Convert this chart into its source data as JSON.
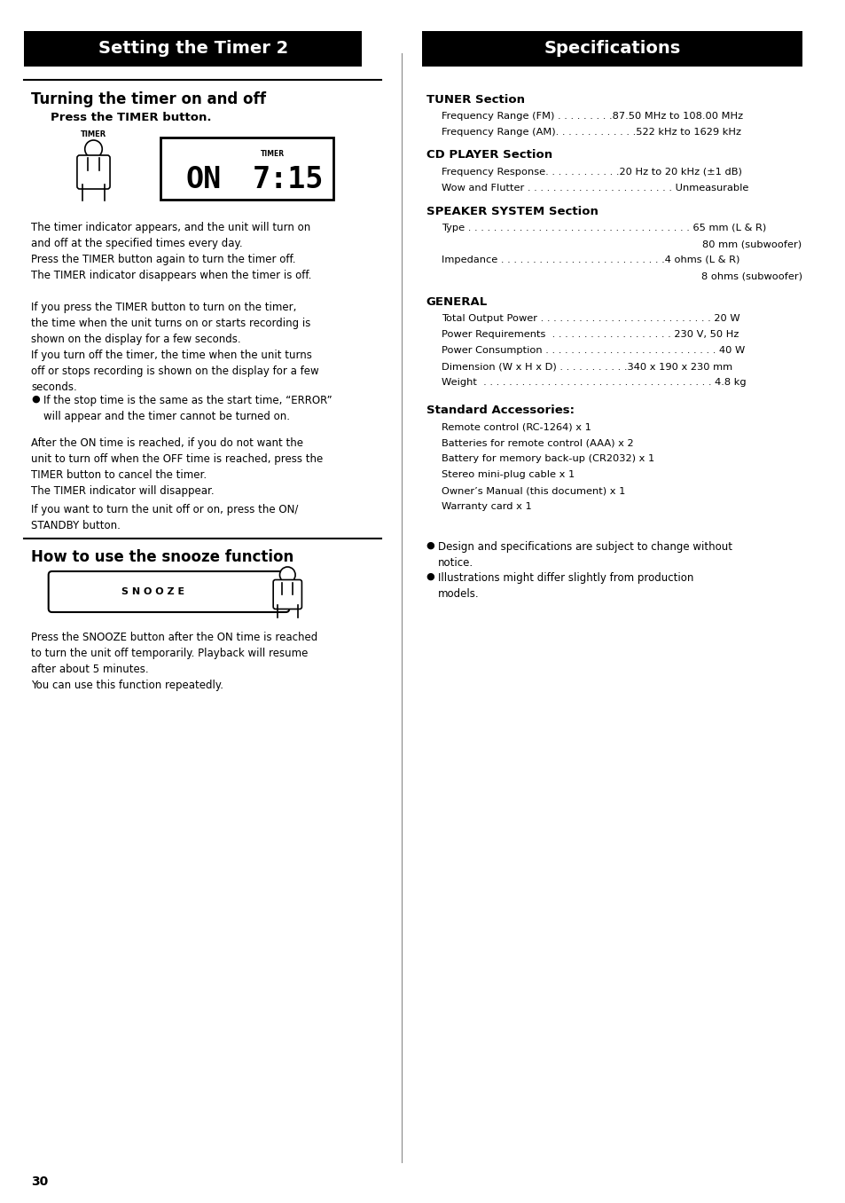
{
  "page_number": "30",
  "col1_header": "Setting the Timer 2",
  "col2_header": "Specifications",
  "col1_section1_title": "Turning the timer on and off",
  "col1_section1_subtitle": "Press the TIMER button.",
  "col1_section1_body1": "The timer indicator appears, and the unit will turn on\nand off at the specified times every day.\nPress the TIMER button again to turn the timer off.\nThe TIMER indicator disappears when the timer is off.",
  "col1_section1_body2": "If you press the TIMER button to turn on the timer,\nthe time when the unit turns on or starts recording is\nshown on the display for a few seconds.\nIf you turn off the timer, the time when the unit turns\noff or stops recording is shown on the display for a few\nseconds.",
  "col1_bullet1": "If the stop time is the same as the start time, “ERROR”\nwill appear and the timer cannot be turned on.",
  "col1_section1_body3": "After the ON time is reached, if you do not want the\nunit to turn off when the OFF time is reached, press the\nTIMER button to cancel the timer.\nThe TIMER indicator will disappear.",
  "col1_section1_body4": "If you want to turn the unit off or on, press the ON/\nSTANDBY button.",
  "col1_section2_title": "How to use the snooze function",
  "col1_section2_body": "Press the SNOOZE button after the ON time is reached\nto turn the unit off temporarily. Playback will resume\nafter about 5 minutes.\nYou can use this function repeatedly.",
  "col2_tuner_title": "TUNER Section",
  "col2_tuner_line1": "Frequency Range (FM) . . . . . . . . .87.50 MHz to 108.00 MHz",
  "col2_tuner_line2": "Frequency Range (AM). . . . . . . . . . . . .522 kHz to 1629 kHz",
  "col2_cd_title": "CD PLAYER Section",
  "col2_cd_line1": "Frequency Response. . . . . . . . . . . .20 Hz to 20 kHz (±1 dB)",
  "col2_cd_line2": "Wow and Flutter . . . . . . . . . . . . . . . . . . . . . . . Unmeasurable",
  "col2_speaker_title": "SPEAKER SYSTEM Section",
  "col2_speaker_line1": "Type . . . . . . . . . . . . . . . . . . . . . . . . . . . . . . . . . . . 65 mm (L & R)",
  "col2_speaker_line1b": "80 mm (subwoofer)",
  "col2_speaker_line2": "Impedance . . . . . . . . . . . . . . . . . . . . . . . . . .4 ohms (L & R)",
  "col2_speaker_line2b": "8 ohms (subwoofer)",
  "col2_general_title": "GENERAL",
  "col2_general_line1": "Total Output Power . . . . . . . . . . . . . . . . . . . . . . . . . . . 20 W",
  "col2_general_line2": "Power Requirements  . . . . . . . . . . . . . . . . . . . 230 V, 50 Hz",
  "col2_general_line3": "Power Consumption . . . . . . . . . . . . . . . . . . . . . . . . . . . 40 W",
  "col2_general_line4": "Dimension (W x H x D) . . . . . . . . . . .340 x 190 x 230 mm",
  "col2_general_line5": "Weight  . . . . . . . . . . . . . . . . . . . . . . . . . . . . . . . . . . . . 4.8 kg",
  "col2_accessories_title": "Standard Accessories:",
  "col2_accessories_items": [
    "Remote control (RC-1264) x 1",
    "Batteries for remote control (AAA) x 2",
    "Battery for memory back-up (CR2032) x 1",
    "Stereo mini-plug cable x 1",
    "Owner’s Manual (this document) x 1",
    "Warranty card x 1"
  ],
  "col2_bullet1": "Design and specifications are subject to change without\nnotice.",
  "col2_bullet2": "Illustrations might differ slightly from production\nmodels.",
  "header_bg": "#000000",
  "header_fg": "#ffffff",
  "body_fg": "#000000",
  "page_bg": "#ffffff"
}
